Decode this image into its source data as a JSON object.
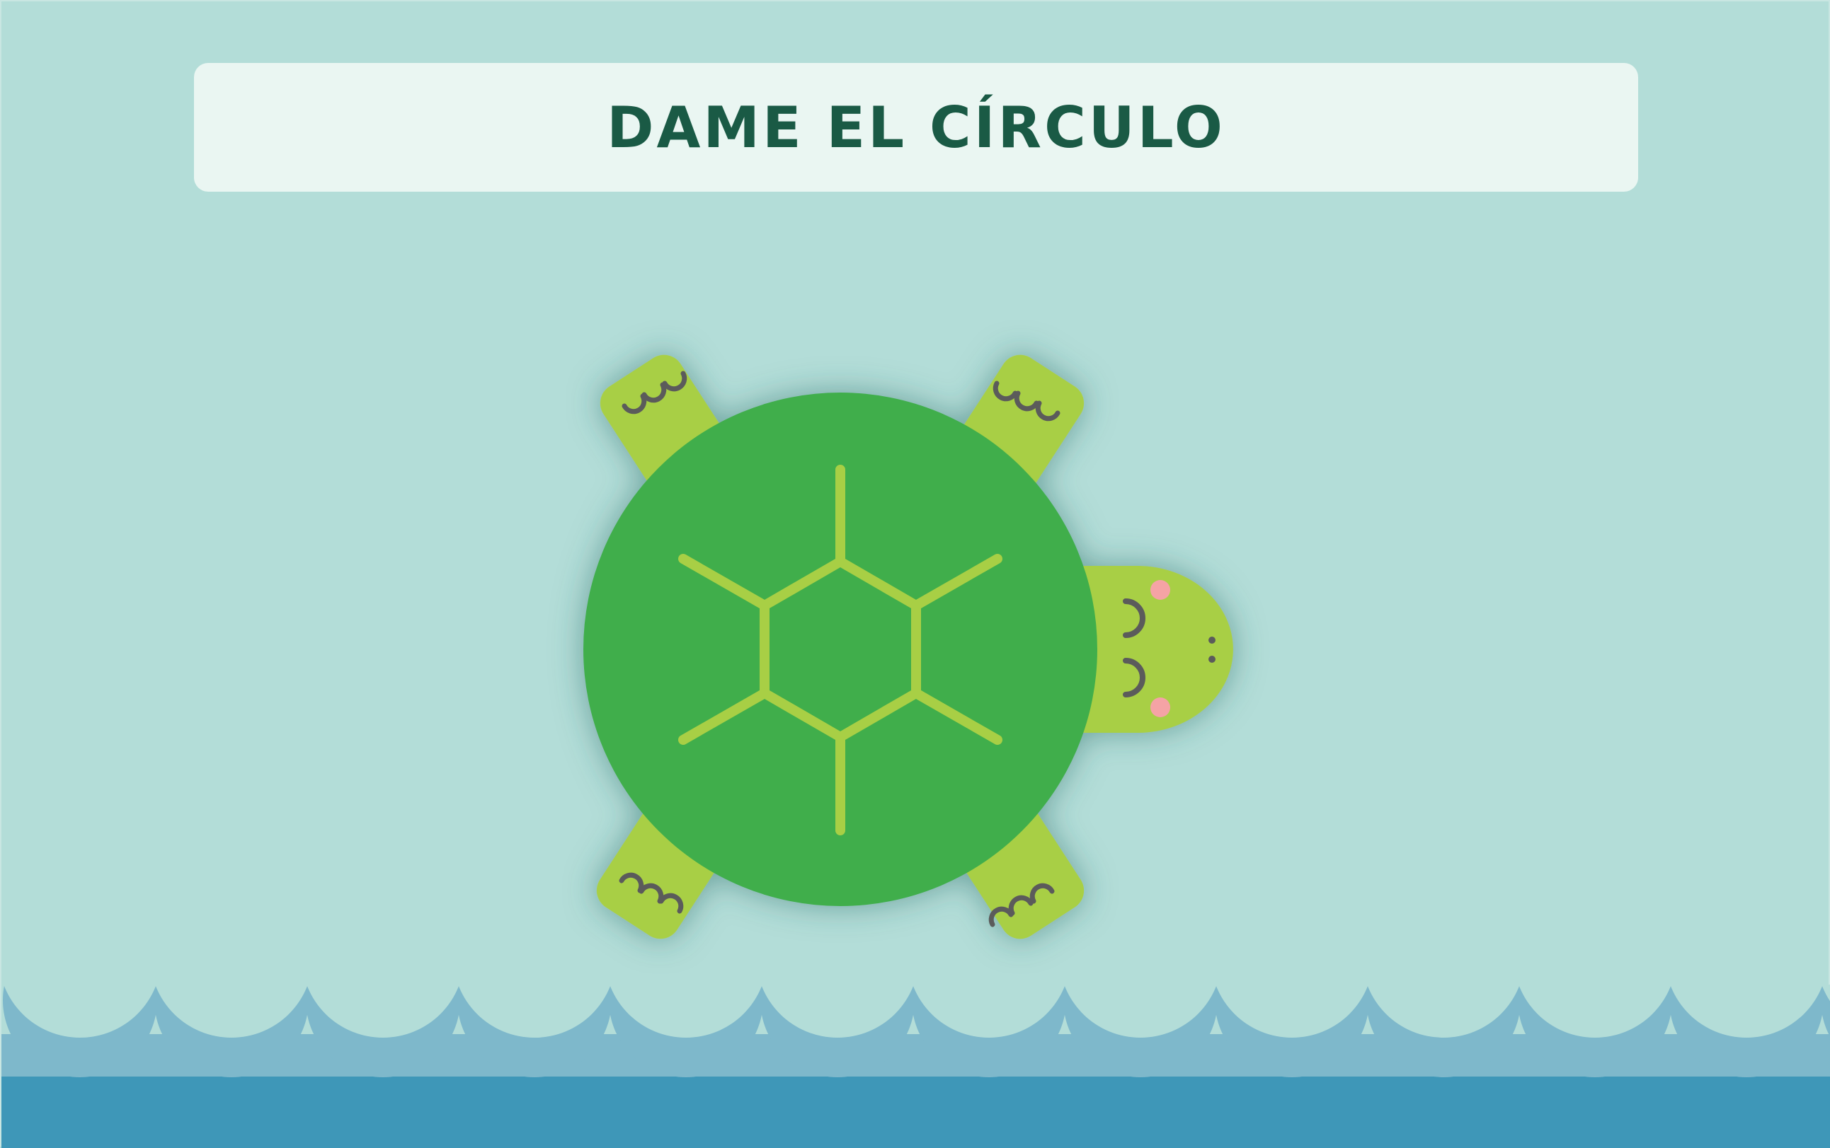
{
  "prompt": {
    "text": "DAME EL CÍRCULO"
  },
  "colors": {
    "background": "#b3ddd8",
    "banner": "#eaf6f2",
    "prompt_text": "#1a5a45",
    "shell": "#41ae4b",
    "shell_pattern": "#a8cf45",
    "limbs": "#a8cf45",
    "claws": "#5b5b5b",
    "cheeks": "#f5a3a5",
    "wave_light": "#7eb8cb",
    "wave_dark": "#3e97b8"
  },
  "icons": {
    "turtle": "turtle-icon",
    "waves": "waves-decoration"
  }
}
